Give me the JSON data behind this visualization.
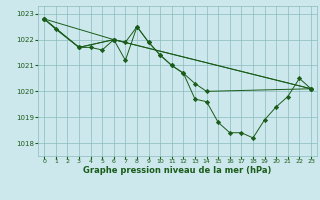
{
  "xlabel": "Graphe pression niveau de la mer (hPa)",
  "bg_color": "#cce8ec",
  "grid_color": "#8bbcbc",
  "line_color": "#1a5c1a",
  "marker_color": "#1a5c1a",
  "xlim": [
    -0.5,
    23.5
  ],
  "ylim": [
    1017.5,
    1023.3
  ],
  "yticks": [
    1018,
    1019,
    1020,
    1021,
    1022,
    1023
  ],
  "xticks": [
    0,
    1,
    2,
    3,
    4,
    5,
    6,
    7,
    8,
    9,
    10,
    11,
    12,
    13,
    14,
    15,
    16,
    17,
    18,
    19,
    20,
    21,
    22,
    23
  ],
  "series": [
    {
      "x": [
        0,
        1,
        3,
        4,
        5,
        6,
        7,
        8,
        9,
        10,
        11,
        12,
        13,
        14,
        15,
        16,
        17,
        18,
        19,
        20,
        21,
        22,
        23
      ],
      "y": [
        1022.8,
        1022.4,
        1021.7,
        1021.7,
        1021.6,
        1022.0,
        1021.9,
        1022.5,
        1021.9,
        1021.4,
        1021.0,
        1020.7,
        1019.7,
        1019.6,
        1018.8,
        1018.4,
        1018.4,
        1018.2,
        1018.9,
        1019.4,
        1019.8,
        1020.5,
        1020.1
      ]
    },
    {
      "x": [
        0,
        3,
        6,
        7,
        8,
        9,
        10,
        11,
        12,
        13,
        14,
        23
      ],
      "y": [
        1022.8,
        1021.7,
        1022.0,
        1021.2,
        1022.5,
        1021.9,
        1021.4,
        1021.0,
        1020.7,
        1020.3,
        1020.0,
        1020.1
      ]
    },
    {
      "x": [
        0,
        3,
        6,
        23
      ],
      "y": [
        1022.8,
        1021.7,
        1022.0,
        1020.1
      ]
    },
    {
      "x": [
        0,
        6,
        23
      ],
      "y": [
        1022.8,
        1022.0,
        1020.1
      ]
    }
  ]
}
